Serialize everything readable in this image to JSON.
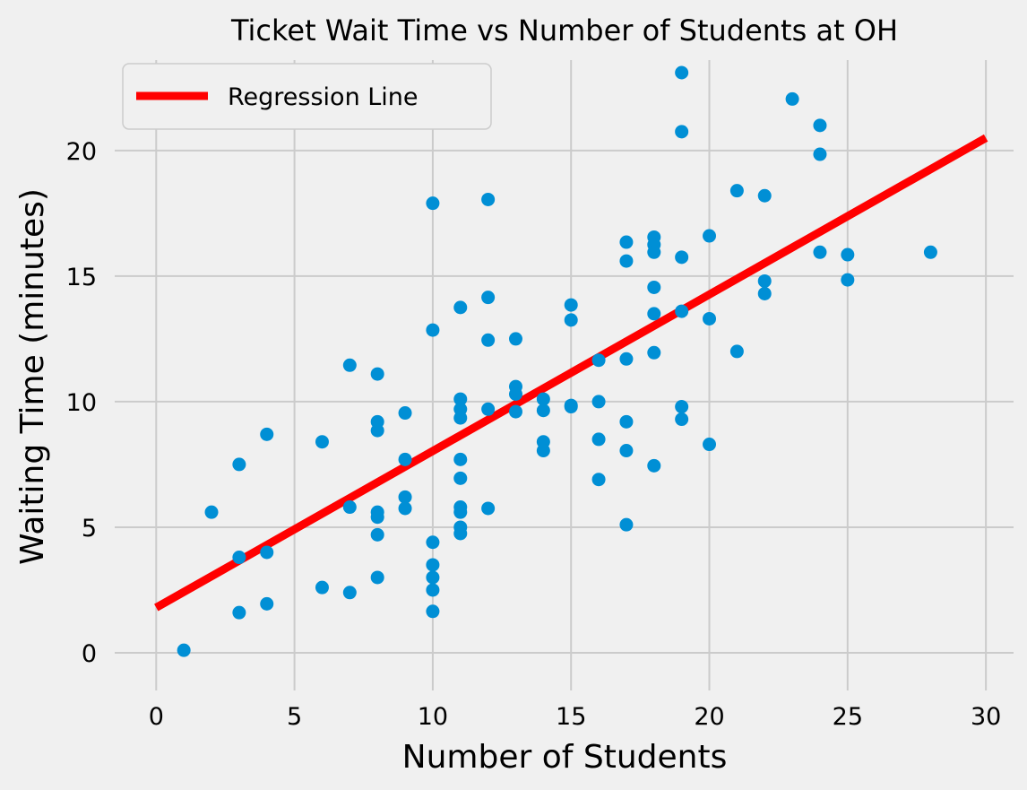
{
  "chart_data": {
    "type": "scatter",
    "title": "Ticket Wait Time vs Number of Students at OH",
    "xlabel": "Number of Students",
    "ylabel": "Waiting Time (minutes)",
    "xlim": [
      -1.5,
      31
    ],
    "ylim": [
      -1.5,
      23.6
    ],
    "xticks": [
      0,
      5,
      10,
      15,
      20,
      25,
      30
    ],
    "yticks": [
      0,
      5,
      10,
      15,
      20
    ],
    "grid": true,
    "legend_placement": "top-left",
    "colors": {
      "background": "#f0f0f0",
      "grid": "#cbcbcb",
      "points": "#008fd5",
      "regression": "#ff0000"
    },
    "series": [
      {
        "type": "scatter",
        "points": [
          [
            1,
            0.1
          ],
          [
            2,
            5.6
          ],
          [
            3,
            7.5
          ],
          [
            3,
            3.8
          ],
          [
            3,
            1.6
          ],
          [
            4,
            8.7
          ],
          [
            4,
            4.0
          ],
          [
            4,
            1.95
          ],
          [
            6,
            8.4
          ],
          [
            6,
            2.6
          ],
          [
            7,
            11.45
          ],
          [
            7,
            5.8
          ],
          [
            7,
            2.4
          ],
          [
            8,
            11.1
          ],
          [
            8,
            9.2
          ],
          [
            8,
            8.85
          ],
          [
            8,
            5.6
          ],
          [
            8,
            5.4
          ],
          [
            8,
            4.7
          ],
          [
            8,
            3.0
          ],
          [
            9,
            9.55
          ],
          [
            9,
            7.7
          ],
          [
            9,
            6.2
          ],
          [
            9,
            5.75
          ],
          [
            10,
            17.9
          ],
          [
            10,
            12.85
          ],
          [
            10,
            4.4
          ],
          [
            10,
            3.5
          ],
          [
            10,
            3.0
          ],
          [
            10,
            2.5
          ],
          [
            10,
            1.65
          ],
          [
            11,
            13.75
          ],
          [
            11,
            10.1
          ],
          [
            11,
            9.7
          ],
          [
            11,
            9.35
          ],
          [
            11,
            7.7
          ],
          [
            11,
            6.95
          ],
          [
            11,
            5.8
          ],
          [
            11,
            5.6
          ],
          [
            11,
            5.0
          ],
          [
            11,
            4.75
          ],
          [
            12,
            18.05
          ],
          [
            12,
            14.15
          ],
          [
            12,
            12.45
          ],
          [
            12,
            9.7
          ],
          [
            12,
            5.75
          ],
          [
            13,
            12.5
          ],
          [
            13,
            10.6
          ],
          [
            13,
            10.3
          ],
          [
            13,
            9.6
          ],
          [
            14,
            10.1
          ],
          [
            14,
            9.65
          ],
          [
            14,
            8.4
          ],
          [
            14,
            8.05
          ],
          [
            15,
            13.85
          ],
          [
            15,
            13.25
          ],
          [
            15,
            9.85
          ],
          [
            15,
            9.8
          ],
          [
            16,
            11.65
          ],
          [
            16,
            10.0
          ],
          [
            16,
            8.5
          ],
          [
            16,
            6.9
          ],
          [
            17,
            16.35
          ],
          [
            17,
            15.6
          ],
          [
            17,
            11.7
          ],
          [
            17,
            9.2
          ],
          [
            17,
            8.05
          ],
          [
            17,
            5.1
          ],
          [
            18,
            16.55
          ],
          [
            18,
            16.25
          ],
          [
            18,
            15.95
          ],
          [
            18,
            14.55
          ],
          [
            18,
            13.5
          ],
          [
            18,
            11.95
          ],
          [
            18,
            7.45
          ],
          [
            19,
            23.1
          ],
          [
            19,
            20.75
          ],
          [
            19,
            15.75
          ],
          [
            19,
            13.6
          ],
          [
            19,
            9.8
          ],
          [
            19,
            9.3
          ],
          [
            20,
            16.6
          ],
          [
            20,
            13.3
          ],
          [
            20,
            8.3
          ],
          [
            21,
            18.4
          ],
          [
            21,
            12.0
          ],
          [
            22,
            18.2
          ],
          [
            22,
            14.8
          ],
          [
            22,
            14.3
          ],
          [
            23,
            22.05
          ],
          [
            24,
            21.0
          ],
          [
            24,
            19.85
          ],
          [
            24,
            15.95
          ],
          [
            25,
            15.85
          ],
          [
            25,
            14.85
          ],
          [
            28,
            15.95
          ]
        ]
      },
      {
        "type": "line",
        "name": "Regression Line",
        "points": [
          [
            0,
            1.8
          ],
          [
            30,
            20.5
          ]
        ]
      }
    ]
  }
}
